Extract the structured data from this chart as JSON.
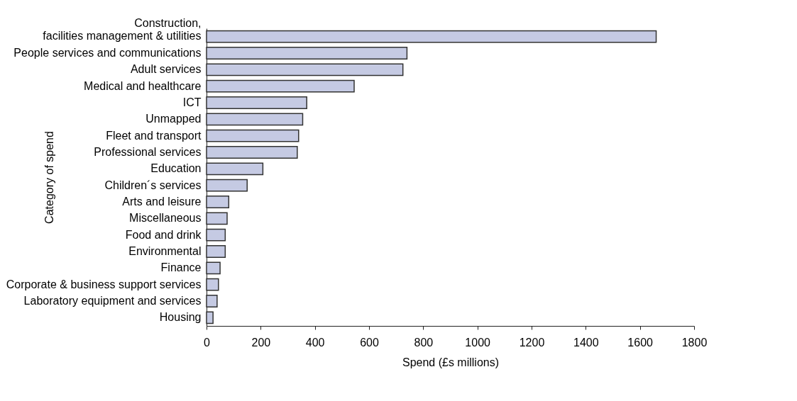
{
  "chart_data": {
    "type": "bar",
    "orientation": "horizontal",
    "xlabel": "Spend (£s millions)",
    "ylabel": "Category of spend",
    "categories": [
      "Construction, facilities management & utilities",
      "People services and communications",
      "Adult services",
      "Medical and healthcare",
      "ICT",
      "Unmapped",
      "Fleet and transport",
      "Professional services",
      "Education",
      "Children´s services",
      "Arts and leisure",
      "Miscellaneous",
      "Food and drink",
      "Environmental",
      "Finance",
      "Corporate & business support services",
      "Laboratory equipment and services",
      "Housing"
    ],
    "values": [
      1660,
      740,
      725,
      545,
      370,
      355,
      340,
      335,
      208,
      150,
      82,
      76,
      69,
      69,
      50,
      44,
      39,
      24
    ],
    "color": "#c5cae3",
    "xlim": [
      0,
      1800
    ],
    "xticks": [
      0,
      200,
      400,
      600,
      800,
      1000,
      1200,
      1400,
      1600,
      1800
    ],
    "grid": false
  }
}
